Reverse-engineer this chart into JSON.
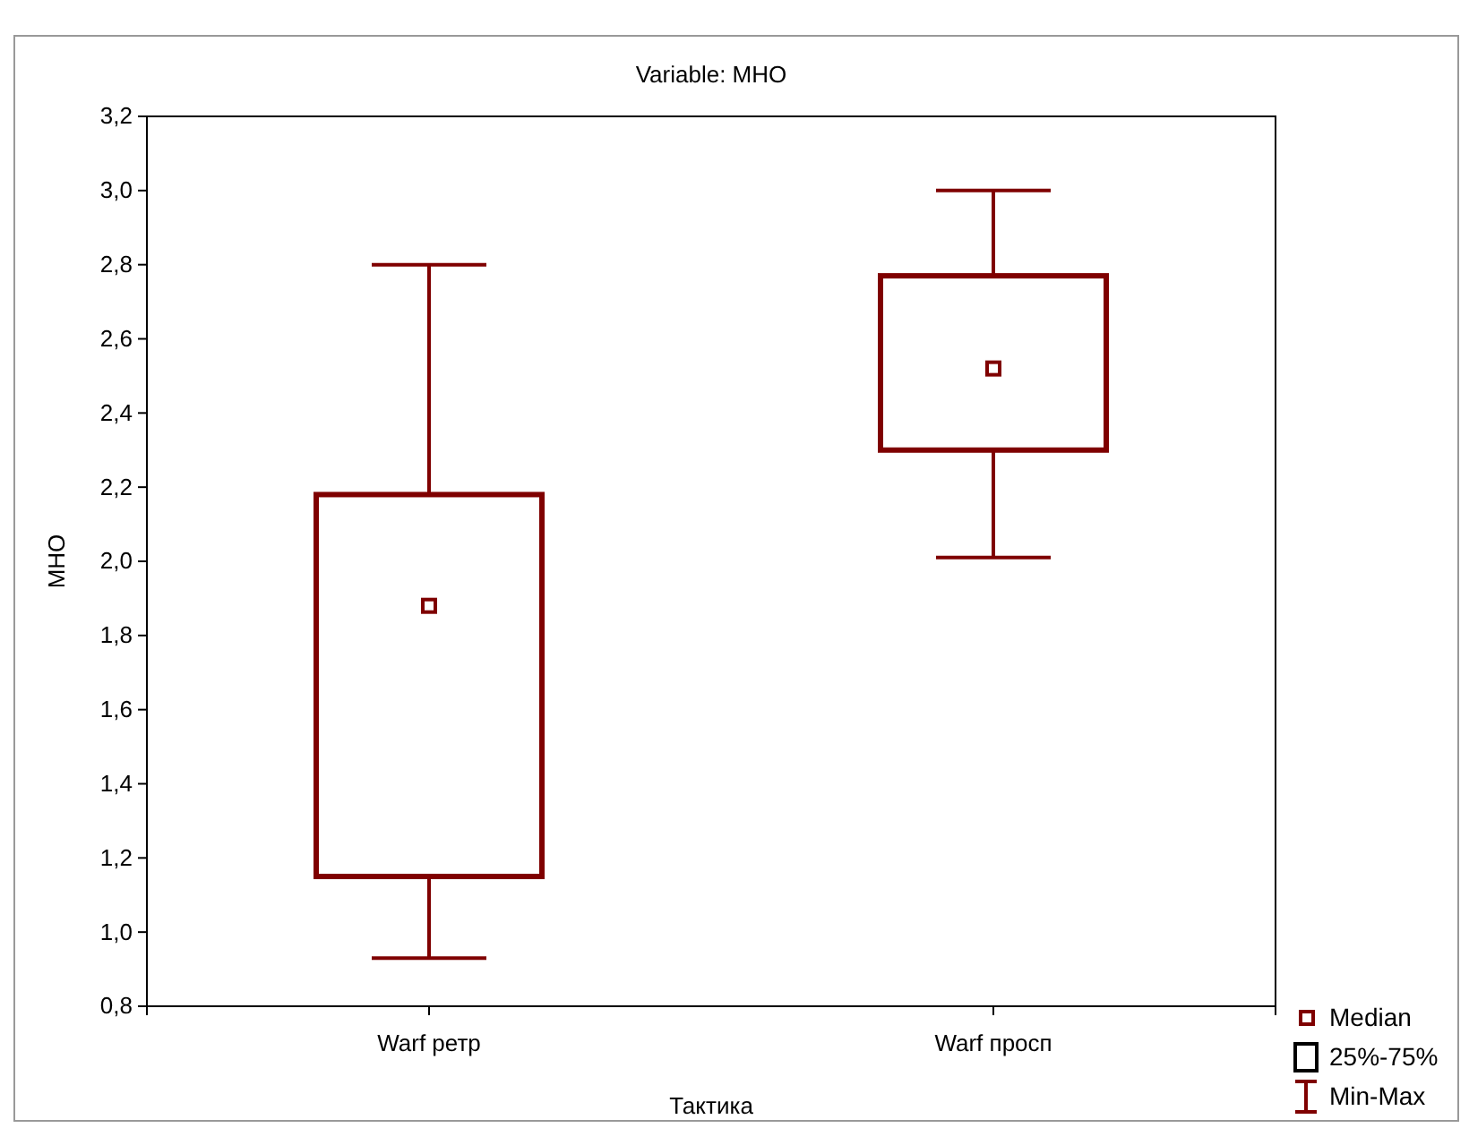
{
  "chart_data": {
    "type": "box",
    "title": "Variable: МНО",
    "xlabel": "Тактика",
    "ylabel": "МНО",
    "categories": [
      "Warf ретр",
      "Warf просп"
    ],
    "series": [
      {
        "color": "#7f0000",
        "boxes": [
          {
            "low": 0.93,
            "q1": 1.15,
            "median": 1.88,
            "q3": 2.18,
            "high": 2.8
          },
          {
            "low": 2.01,
            "q1": 2.3,
            "median": 2.52,
            "q3": 2.77,
            "high": 3.0
          }
        ]
      }
    ],
    "ylim": [
      0.8,
      3.2
    ],
    "yticks": [
      {
        "value": 0.8,
        "label": "0,8"
      },
      {
        "value": 1.0,
        "label": "1,0"
      },
      {
        "value": 1.2,
        "label": "1,2"
      },
      {
        "value": 1.4,
        "label": "1,4"
      },
      {
        "value": 1.6,
        "label": "1,6"
      },
      {
        "value": 1.8,
        "label": "1,8"
      },
      {
        "value": 2.0,
        "label": "2,0"
      },
      {
        "value": 2.2,
        "label": "2,2"
      },
      {
        "value": 2.4,
        "label": "2,4"
      },
      {
        "value": 2.6,
        "label": "2,6"
      },
      {
        "value": 2.8,
        "label": "2,8"
      },
      {
        "value": 3.0,
        "label": "3,0"
      },
      {
        "value": 3.2,
        "label": "3,2"
      }
    ],
    "marker": "square",
    "annotations": [
      "Median",
      "25%-75%",
      "Min-Max"
    ]
  }
}
